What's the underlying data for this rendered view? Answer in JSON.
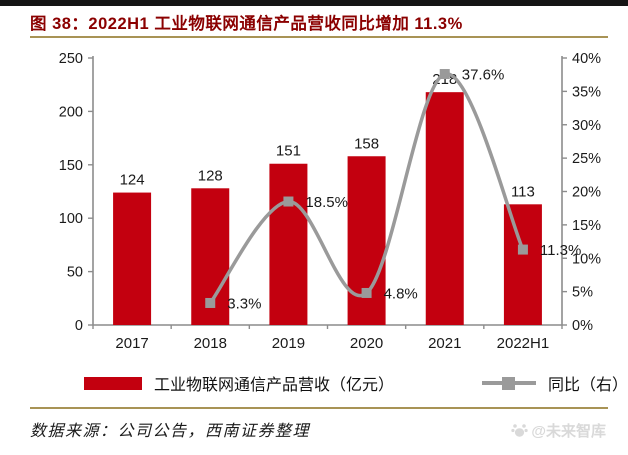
{
  "header": {
    "title": "图 38：2022H1 工业物联网通信产品营收同比增加 11.3%"
  },
  "chart_data": {
    "type": "bar",
    "title": "2022H1 工业物联网通信产品营收同比增加 11.3%",
    "categories": [
      "2017",
      "2018",
      "2019",
      "2020",
      "2021",
      "2022H1"
    ],
    "series": [
      {
        "name": "工业物联网通信产品营收（亿元）",
        "type": "bar",
        "axis": "left",
        "values": [
          124,
          128,
          151,
          158,
          218,
          113
        ],
        "labels": [
          "124",
          "128",
          "151",
          "158",
          "218",
          "113"
        ],
        "color": "#c3000f"
      },
      {
        "name": "同比（右）",
        "type": "line",
        "axis": "right",
        "values": [
          null,
          3.3,
          18.5,
          4.8,
          37.6,
          11.3
        ],
        "labels": [
          null,
          "3.3%",
          "18.5%",
          "4.8%",
          "37.6%",
          "11.3%"
        ],
        "color": "#9a9a9a",
        "smooth": true,
        "marker": "square"
      }
    ],
    "left_axis": {
      "min": 0,
      "max": 250,
      "step": 50,
      "ticks": [
        "0",
        "50",
        "100",
        "150",
        "200",
        "250"
      ]
    },
    "right_axis": {
      "min": 0,
      "max": 40,
      "step": 5,
      "ticks": [
        "0%",
        "5%",
        "10%",
        "15%",
        "20%",
        "25%",
        "30%",
        "35%",
        "40%"
      ]
    },
    "grid": false,
    "legend_position": "bottom"
  },
  "legend": {
    "bar_label": "工业物联网通信产品营收（亿元）",
    "line_label": "同比（右）"
  },
  "footer": {
    "source": "数据来源：公司公告，西南证券整理",
    "watermark": "@未来智库"
  },
  "colors": {
    "bar": "#c3000f",
    "line": "#9a9a9a",
    "title": "#8b0000",
    "rule": "#a89355",
    "axis": "#8c8c8c",
    "label_text": "#1a1a1a",
    "top_bar": "#151515",
    "watermark": "#d9d9d9"
  }
}
